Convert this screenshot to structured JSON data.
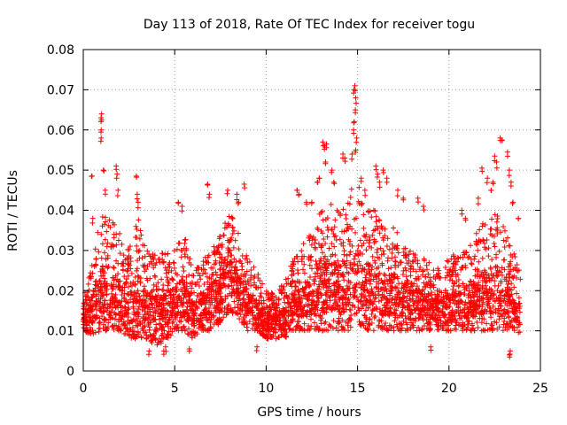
{
  "chart_data": {
    "type": "scatter",
    "title": "Day 113 of 2018, Rate Of TEC Index for receiver togu",
    "xlabel": "GPS time / hours",
    "ylabel": "ROTI / TECUs",
    "xlim": [
      0,
      25
    ],
    "ylim": [
      0,
      0.08
    ],
    "x_ticks": [
      "0",
      "5",
      "10",
      "15",
      "20",
      "25"
    ],
    "y_ticks": [
      "0",
      "0.01",
      "0.02",
      "0.03",
      "0.04",
      "0.05",
      "0.06",
      "0.07",
      "0.08"
    ],
    "grid": true,
    "marker": "plus",
    "color": "#ff0000",
    "envelope": [
      [
        0.0,
        0.01,
        0.018
      ],
      [
        0.5,
        0.009,
        0.028
      ],
      [
        1.0,
        0.01,
        0.04
      ],
      [
        1.5,
        0.01,
        0.038
      ],
      [
        2.0,
        0.01,
        0.035
      ],
      [
        2.5,
        0.008,
        0.032
      ],
      [
        3.0,
        0.008,
        0.038
      ],
      [
        3.5,
        0.008,
        0.03
      ],
      [
        4.0,
        0.006,
        0.03
      ],
      [
        4.5,
        0.007,
        0.03
      ],
      [
        5.0,
        0.01,
        0.03
      ],
      [
        5.5,
        0.01,
        0.035
      ],
      [
        6.0,
        0.008,
        0.025
      ],
      [
        6.5,
        0.01,
        0.028
      ],
      [
        7.0,
        0.01,
        0.03
      ],
      [
        7.5,
        0.012,
        0.035
      ],
      [
        8.0,
        0.015,
        0.04
      ],
      [
        8.5,
        0.013,
        0.035
      ],
      [
        9.0,
        0.01,
        0.028
      ],
      [
        9.5,
        0.01,
        0.025
      ],
      [
        10.0,
        0.008,
        0.02
      ],
      [
        10.5,
        0.008,
        0.02
      ],
      [
        11.0,
        0.008,
        0.022
      ],
      [
        11.5,
        0.01,
        0.028
      ],
      [
        12.0,
        0.01,
        0.032
      ],
      [
        12.5,
        0.01,
        0.036
      ],
      [
        13.0,
        0.01,
        0.04
      ],
      [
        13.5,
        0.01,
        0.042
      ],
      [
        14.0,
        0.01,
        0.04
      ],
      [
        14.5,
        0.01,
        0.045
      ],
      [
        15.0,
        0.012,
        0.048
      ],
      [
        15.5,
        0.01,
        0.04
      ],
      [
        16.0,
        0.01,
        0.04
      ],
      [
        16.5,
        0.01,
        0.036
      ],
      [
        17.0,
        0.01,
        0.036
      ],
      [
        17.5,
        0.01,
        0.032
      ],
      [
        18.0,
        0.01,
        0.03
      ],
      [
        18.5,
        0.01,
        0.028
      ],
      [
        19.0,
        0.01,
        0.028
      ],
      [
        19.5,
        0.01,
        0.026
      ],
      [
        20.0,
        0.01,
        0.028
      ],
      [
        20.5,
        0.01,
        0.03
      ],
      [
        21.0,
        0.01,
        0.03
      ],
      [
        21.5,
        0.01,
        0.035
      ],
      [
        22.0,
        0.01,
        0.038
      ],
      [
        22.5,
        0.01,
        0.04
      ],
      [
        23.0,
        0.01,
        0.036
      ],
      [
        23.5,
        0.01,
        0.03
      ],
      [
        23.9,
        0.009,
        0.025
      ]
    ],
    "spikes": [
      {
        "x": 0.48,
        "y": 0.0485
      },
      {
        "x": 0.52,
        "y": 0.038
      },
      {
        "x": 1.0,
        "y": 0.064
      },
      {
        "x": 1.0,
        "y": 0.0625
      },
      {
        "x": 0.98,
        "y": 0.06
      },
      {
        "x": 0.98,
        "y": 0.058
      },
      {
        "x": 1.1,
        "y": 0.05
      },
      {
        "x": 1.2,
        "y": 0.045
      },
      {
        "x": 1.8,
        "y": 0.051
      },
      {
        "x": 1.85,
        "y": 0.049
      },
      {
        "x": 1.9,
        "y": 0.045
      },
      {
        "x": 2.9,
        "y": 0.0485
      },
      {
        "x": 2.95,
        "y": 0.044
      },
      {
        "x": 3.0,
        "y": 0.042
      },
      {
        "x": 5.2,
        "y": 0.042
      },
      {
        "x": 5.4,
        "y": 0.041
      },
      {
        "x": 6.8,
        "y": 0.0465
      },
      {
        "x": 6.9,
        "y": 0.044
      },
      {
        "x": 7.9,
        "y": 0.045
      },
      {
        "x": 8.4,
        "y": 0.044
      },
      {
        "x": 8.5,
        "y": 0.042
      },
      {
        "x": 8.8,
        "y": 0.0465
      },
      {
        "x": 11.2,
        "y": 0.023
      },
      {
        "x": 11.4,
        "y": 0.025
      },
      {
        "x": 11.7,
        "y": 0.045
      },
      {
        "x": 11.8,
        "y": 0.044
      },
      {
        "x": 12.2,
        "y": 0.042
      },
      {
        "x": 12.5,
        "y": 0.042
      },
      {
        "x": 12.8,
        "y": 0.047
      },
      {
        "x": 12.9,
        "y": 0.048
      },
      {
        "x": 13.1,
        "y": 0.057
      },
      {
        "x": 13.2,
        "y": 0.056
      },
      {
        "x": 13.3,
        "y": 0.0565
      },
      {
        "x": 13.25,
        "y": 0.052
      },
      {
        "x": 13.6,
        "y": 0.05
      },
      {
        "x": 13.7,
        "y": 0.047
      },
      {
        "x": 14.2,
        "y": 0.054
      },
      {
        "x": 14.3,
        "y": 0.053
      },
      {
        "x": 14.8,
        "y": 0.07
      },
      {
        "x": 14.85,
        "y": 0.071
      },
      {
        "x": 14.9,
        "y": 0.068
      },
      {
        "x": 14.88,
        "y": 0.065
      },
      {
        "x": 14.82,
        "y": 0.062
      },
      {
        "x": 14.78,
        "y": 0.06
      },
      {
        "x": 14.95,
        "y": 0.058
      },
      {
        "x": 14.9,
        "y": 0.055
      },
      {
        "x": 14.7,
        "y": 0.054
      },
      {
        "x": 15.2,
        "y": 0.048
      },
      {
        "x": 15.4,
        "y": 0.045
      },
      {
        "x": 16.0,
        "y": 0.051
      },
      {
        "x": 16.1,
        "y": 0.049
      },
      {
        "x": 16.2,
        "y": 0.047
      },
      {
        "x": 16.4,
        "y": 0.05
      },
      {
        "x": 16.6,
        "y": 0.048
      },
      {
        "x": 17.2,
        "y": 0.045
      },
      {
        "x": 17.5,
        "y": 0.043
      },
      {
        "x": 18.3,
        "y": 0.043
      },
      {
        "x": 18.6,
        "y": 0.041
      },
      {
        "x": 20.7,
        "y": 0.04
      },
      {
        "x": 20.9,
        "y": 0.038
      },
      {
        "x": 21.6,
        "y": 0.043
      },
      {
        "x": 21.8,
        "y": 0.0505
      },
      {
        "x": 22.1,
        "y": 0.048
      },
      {
        "x": 22.3,
        "y": 0.045
      },
      {
        "x": 22.4,
        "y": 0.047
      },
      {
        "x": 22.5,
        "y": 0.0535
      },
      {
        "x": 22.6,
        "y": 0.052
      },
      {
        "x": 22.8,
        "y": 0.058
      },
      {
        "x": 22.9,
        "y": 0.0575
      },
      {
        "x": 23.2,
        "y": 0.0545
      },
      {
        "x": 23.3,
        "y": 0.05
      },
      {
        "x": 23.4,
        "y": 0.047
      },
      {
        "x": 23.5,
        "y": 0.042
      },
      {
        "x": 23.8,
        "y": 0.038
      },
      {
        "x": 3.6,
        "y": 0.005
      },
      {
        "x": 4.4,
        "y": 0.005
      },
      {
        "x": 4.5,
        "y": 0.006
      },
      {
        "x": 5.8,
        "y": 0.0055
      },
      {
        "x": 9.5,
        "y": 0.006
      },
      {
        "x": 19.0,
        "y": 0.006
      },
      {
        "x": 23.3,
        "y": 0.004
      },
      {
        "x": 23.35,
        "y": 0.005
      }
    ]
  }
}
